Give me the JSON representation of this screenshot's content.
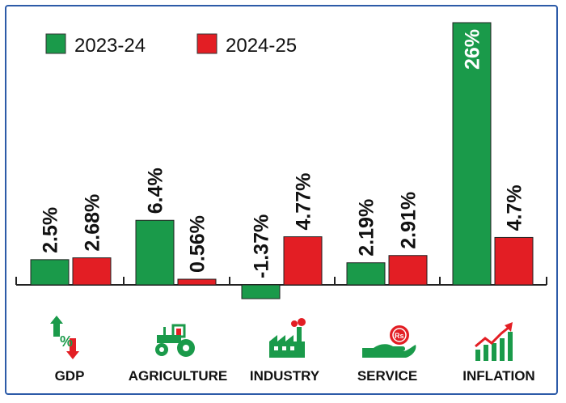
{
  "chart_data": {
    "type": "bar",
    "categories": [
      "GDP",
      "AGRICULTURE",
      "INDUSTRY",
      "SERVICE",
      "INFLATION"
    ],
    "series": [
      {
        "name": "2023-24",
        "values": [
          2.5,
          6.4,
          -1.37,
          2.19,
          26
        ],
        "labels": [
          "2.5%",
          "6.4%",
          "-1.37%",
          "2.19%",
          "26%"
        ]
      },
      {
        "name": "2024-25",
        "values": [
          2.68,
          0.56,
          4.77,
          2.91,
          4.7
        ],
        "labels": [
          "2.68%",
          "0.56%",
          "4.77%",
          "2.91%",
          "4.7%"
        ]
      }
    ],
    "legend": "top-left",
    "grid": false,
    "colors": {
      "2023-24": "#1a9a4a",
      "2024-25": "#e31e24"
    },
    "icons": [
      "gdp-percent-icon",
      "tractor-icon",
      "factory-icon",
      "hand-coin-icon",
      "growth-chart-icon"
    ]
  }
}
